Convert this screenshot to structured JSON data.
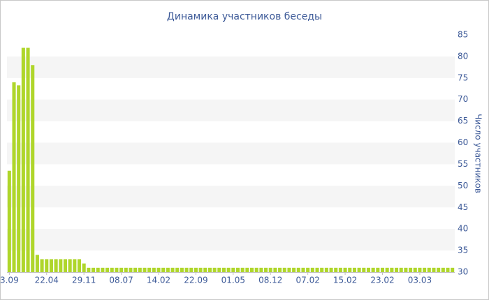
{
  "chart_data": {
    "type": "bar",
    "title": "Динамика участников беседы",
    "y_axis_label": "Число участников",
    "categories": [
      "3.09",
      null,
      null,
      null,
      null,
      null,
      null,
      null,
      "22.04",
      null,
      null,
      null,
      null,
      null,
      null,
      null,
      "29.11",
      null,
      null,
      null,
      null,
      null,
      null,
      null,
      "08.07",
      null,
      null,
      null,
      null,
      null,
      null,
      null,
      "14.02",
      null,
      null,
      null,
      null,
      null,
      null,
      null,
      "22.09",
      null,
      null,
      null,
      null,
      null,
      null,
      null,
      "01.05",
      null,
      null,
      null,
      null,
      null,
      null,
      null,
      "08.12",
      null,
      null,
      null,
      null,
      null,
      null,
      null,
      "07.02",
      null,
      null,
      null,
      null,
      null,
      null,
      null,
      "15.02",
      null,
      null,
      null,
      null,
      null,
      null,
      null,
      "23.02",
      null,
      null,
      null,
      null,
      null,
      null,
      null,
      "03.03",
      null,
      null,
      null,
      null,
      null,
      null,
      null
    ],
    "values": [
      53.5,
      74,
      73.3,
      82,
      82,
      78,
      34,
      33,
      33,
      33,
      33,
      33,
      33,
      33,
      33,
      33,
      32,
      31,
      31,
      31,
      31,
      31,
      31,
      31,
      31,
      31,
      31,
      31,
      31,
      31,
      31,
      31,
      31,
      31,
      31,
      31,
      31,
      31,
      31,
      31,
      31,
      31,
      31,
      31,
      31,
      31,
      31,
      31,
      31,
      31,
      31,
      31,
      31,
      31,
      31,
      31,
      31,
      31,
      31,
      31,
      31,
      31,
      31,
      31,
      31,
      31,
      31,
      31,
      31,
      31,
      31,
      31,
      31,
      31,
      31,
      31,
      31,
      31,
      31,
      31,
      31,
      31,
      31,
      31,
      31,
      31,
      31,
      31,
      31,
      31,
      31,
      31,
      31,
      31,
      31,
      31
    ],
    "color": "#afd62b",
    "ylim": [
      30,
      85
    ],
    "yticks": [
      30,
      35,
      40,
      45,
      50,
      55,
      60,
      65,
      70,
      75,
      80,
      85
    ],
    "grid_bands": true,
    "y_axis_side": "right"
  }
}
